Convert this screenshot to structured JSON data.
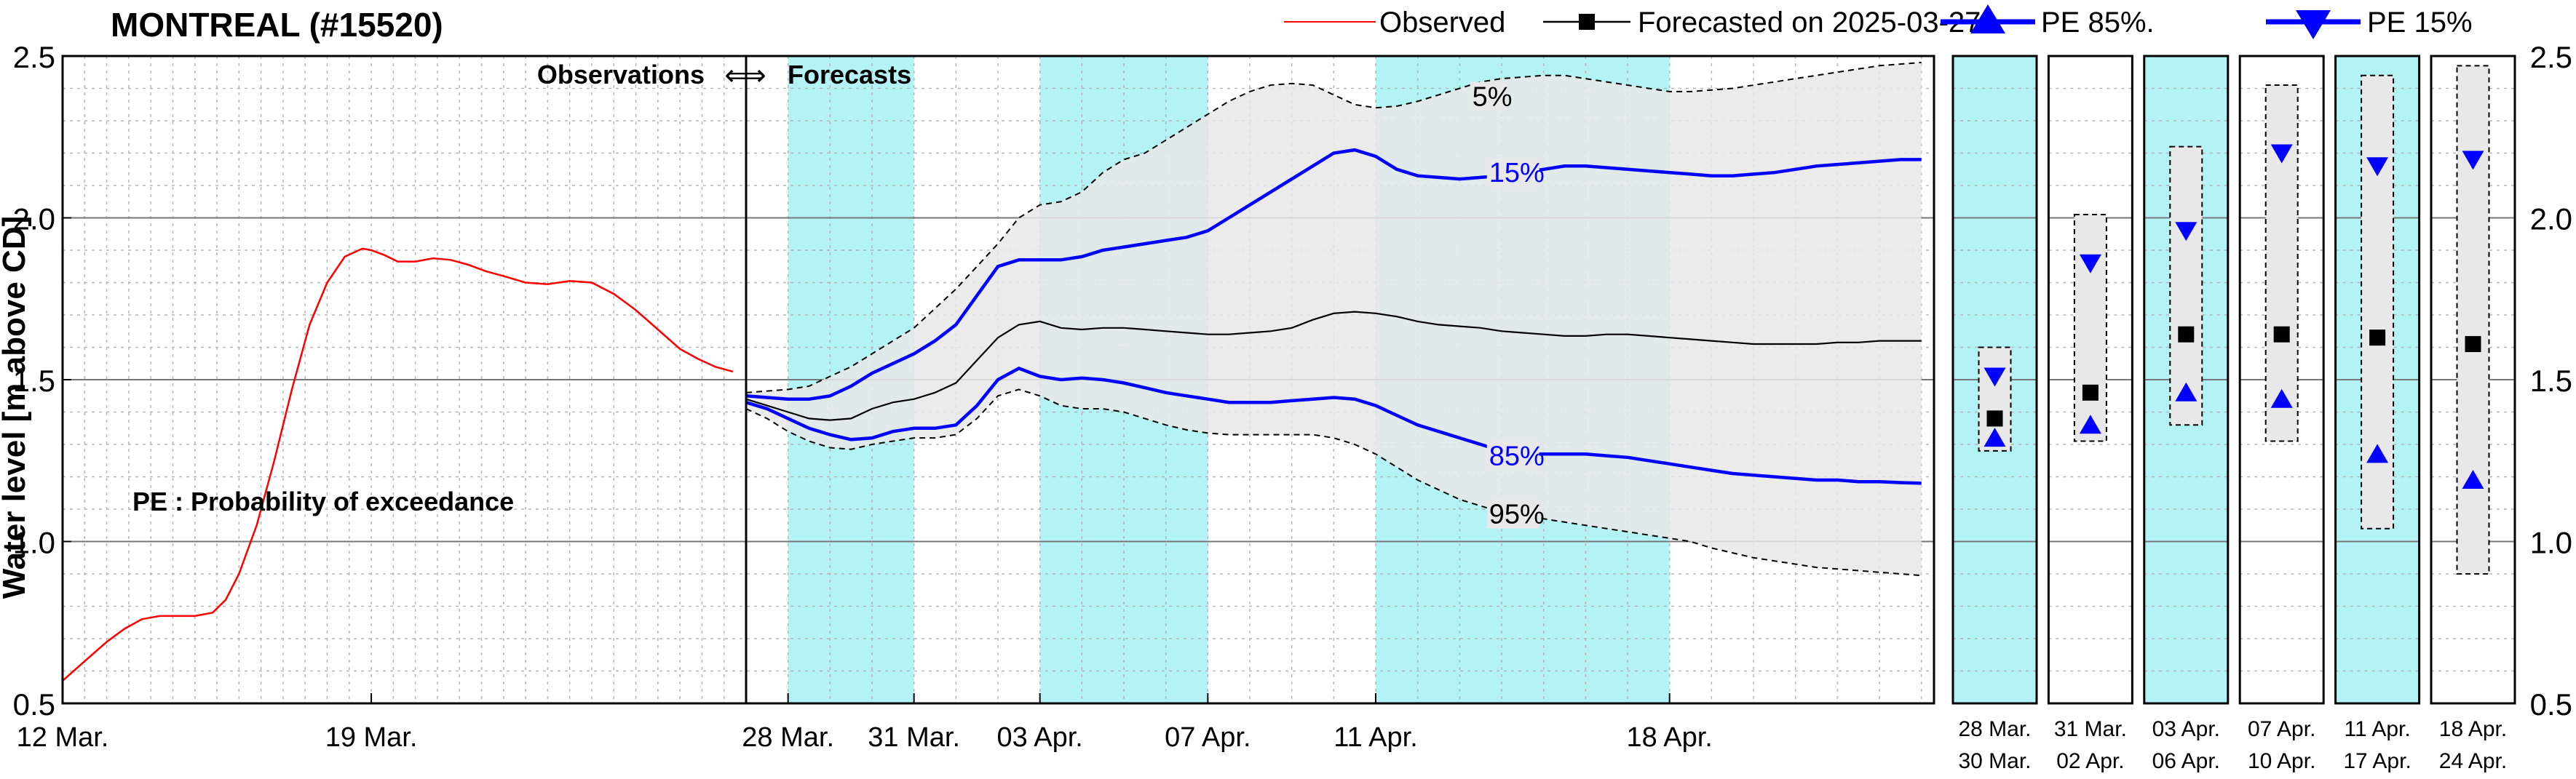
{
  "chart_data": {
    "type": "line",
    "title": "MONTREAL (#15520)",
    "ylabel": "Water level [m above CD]",
    "ylim": [
      0.5,
      2.5
    ],
    "y_ticks": [
      "0.5",
      "1.0",
      "1.5",
      "2.0",
      "2.5"
    ],
    "grid": true,
    "legend": {
      "placement": "top-right",
      "entries": [
        {
          "label": "Observed",
          "color": "#ff0000",
          "marker": "none"
        },
        {
          "label": "Forecasted on 2025-03-27",
          "color": "#000000",
          "marker": "square"
        },
        {
          "label": "PE 85%.",
          "color": "#0000ff",
          "marker": "triangle-up"
        },
        {
          "label": "PE 15%",
          "color": "#0000ff",
          "marker": "triangle-down"
        }
      ]
    },
    "annotations": {
      "obs_forecast_label": "Observations",
      "forecast_label": "Forecasts",
      "arrow": "⟺",
      "pe_note": "PE : Probability of exceedance"
    },
    "colors": {
      "observed": "#ff0000",
      "forecast": "#000000",
      "pe": "#0000ff",
      "band": "#e8e8e8",
      "shade": "#b3f3f5"
    },
    "observed_panel": {
      "x_ticks": [
        {
          "label": "12 Mar.",
          "day": 0
        },
        {
          "label": "19 Mar.",
          "day": 7
        }
      ],
      "day_range": [
        0,
        15.5
      ],
      "series": {
        "name": "Observed",
        "x": [
          0,
          0.5,
          1,
          1.4,
          1.8,
          2.2,
          2.6,
          3.0,
          3.4,
          3.7,
          4.0,
          4.4,
          4.8,
          5.2,
          5.6,
          6.0,
          6.4,
          6.8,
          7.0,
          7.3,
          7.6,
          8.0,
          8.4,
          8.8,
          9.2,
          9.6,
          10.0,
          10.5,
          11.0,
          11.5,
          12.0,
          12.5,
          13.0,
          13.5,
          14.0,
          14.4,
          14.8,
          15.2
        ],
        "y": [
          0.57,
          0.63,
          0.69,
          0.73,
          0.76,
          0.77,
          0.77,
          0.77,
          0.78,
          0.82,
          0.9,
          1.05,
          1.25,
          1.47,
          1.67,
          1.8,
          1.88,
          1.905,
          1.9,
          1.885,
          1.865,
          1.865,
          1.875,
          1.87,
          1.855,
          1.835,
          1.82,
          1.8,
          1.795,
          1.805,
          1.8,
          1.765,
          1.715,
          1.655,
          1.595,
          1.565,
          1.54,
          1.525
        ]
      }
    },
    "forecast_panel": {
      "x_ticks": [
        {
          "label": "28 Mar.",
          "day": 1
        },
        {
          "label": "31 Mar.",
          "day": 4
        },
        {
          "label": "03 Apr.",
          "day": 7
        },
        {
          "label": "07 Apr.",
          "day": 11
        },
        {
          "label": "11 Apr.",
          "day": 15
        },
        {
          "label": "18 Apr.",
          "day": 22
        }
      ],
      "day_range": [
        0,
        28.3
      ],
      "shaded_days": [
        [
          1,
          4
        ],
        [
          7,
          11
        ],
        [
          15,
          22
        ]
      ],
      "x": [
        0,
        0.5,
        1,
        1.5,
        2,
        2.5,
        3,
        3.5,
        4,
        4.5,
        5,
        5.5,
        6,
        6.5,
        7,
        7.5,
        8,
        8.5,
        9,
        9.5,
        10,
        10.5,
        11,
        11.5,
        12,
        12.5,
        13,
        13.5,
        14,
        14.5,
        15,
        15.5,
        16,
        16.5,
        17,
        17.5,
        18,
        18.5,
        19,
        19.5,
        20,
        20.5,
        21,
        21.5,
        22,
        22.5,
        23,
        23.5,
        24,
        24.5,
        25,
        25.5,
        26,
        26.5,
        27,
        27.5,
        28
      ],
      "series": [
        {
          "name": "5%",
          "role": "upper-band",
          "y": [
            1.46,
            1.465,
            1.47,
            1.48,
            1.51,
            1.54,
            1.58,
            1.62,
            1.66,
            1.72,
            1.78,
            1.85,
            1.92,
            2.0,
            2.04,
            2.05,
            2.08,
            2.14,
            2.18,
            2.2,
            2.24,
            2.28,
            2.32,
            2.36,
            2.39,
            2.41,
            2.415,
            2.41,
            2.38,
            2.35,
            2.34,
            2.345,
            2.36,
            2.38,
            2.4,
            2.42,
            2.43,
            2.435,
            2.44,
            2.44,
            2.43,
            2.42,
            2.41,
            2.4,
            2.39,
            2.39,
            2.395,
            2.4,
            2.41,
            2.42,
            2.43,
            2.44,
            2.45,
            2.46,
            2.47,
            2.475,
            2.48
          ]
        },
        {
          "name": "15%",
          "role": "pe15",
          "y": [
            1.45,
            1.445,
            1.44,
            1.44,
            1.45,
            1.48,
            1.52,
            1.55,
            1.58,
            1.62,
            1.67,
            1.76,
            1.85,
            1.87,
            1.87,
            1.87,
            1.88,
            1.9,
            1.91,
            1.92,
            1.93,
            1.94,
            1.96,
            2.0,
            2.04,
            2.08,
            2.12,
            2.16,
            2.2,
            2.21,
            2.19,
            2.15,
            2.13,
            2.125,
            2.12,
            2.125,
            2.13,
            2.14,
            2.15,
            2.16,
            2.16,
            2.155,
            2.15,
            2.145,
            2.14,
            2.135,
            2.13,
            2.13,
            2.135,
            2.14,
            2.15,
            2.16,
            2.165,
            2.17,
            2.175,
            2.18,
            2.18
          ]
        },
        {
          "name": "Forecasted on 2025-03-27",
          "role": "median",
          "y": [
            1.44,
            1.42,
            1.4,
            1.38,
            1.375,
            1.38,
            1.41,
            1.43,
            1.44,
            1.46,
            1.49,
            1.56,
            1.63,
            1.67,
            1.68,
            1.66,
            1.655,
            1.66,
            1.66,
            1.655,
            1.65,
            1.645,
            1.64,
            1.64,
            1.645,
            1.65,
            1.66,
            1.685,
            1.705,
            1.71,
            1.705,
            1.695,
            1.68,
            1.67,
            1.665,
            1.66,
            1.65,
            1.645,
            1.64,
            1.635,
            1.635,
            1.64,
            1.64,
            1.635,
            1.63,
            1.625,
            1.62,
            1.615,
            1.61,
            1.61,
            1.61,
            1.61,
            1.615,
            1.615,
            1.62,
            1.62,
            1.62
          ]
        },
        {
          "name": "85%",
          "role": "pe85",
          "y": [
            1.43,
            1.41,
            1.38,
            1.35,
            1.33,
            1.315,
            1.32,
            1.34,
            1.35,
            1.35,
            1.36,
            1.42,
            1.5,
            1.535,
            1.51,
            1.5,
            1.505,
            1.5,
            1.49,
            1.475,
            1.46,
            1.45,
            1.44,
            1.43,
            1.43,
            1.43,
            1.435,
            1.44,
            1.445,
            1.44,
            1.42,
            1.39,
            1.36,
            1.34,
            1.32,
            1.3,
            1.28,
            1.27,
            1.27,
            1.27,
            1.27,
            1.265,
            1.26,
            1.25,
            1.24,
            1.23,
            1.22,
            1.21,
            1.205,
            1.2,
            1.195,
            1.19,
            1.19,
            1.185,
            1.185,
            1.182,
            1.18
          ]
        },
        {
          "name": "95%",
          "role": "lower-band",
          "y": [
            1.41,
            1.38,
            1.34,
            1.31,
            1.29,
            1.285,
            1.3,
            1.31,
            1.32,
            1.32,
            1.33,
            1.38,
            1.45,
            1.47,
            1.45,
            1.42,
            1.41,
            1.41,
            1.4,
            1.38,
            1.36,
            1.345,
            1.335,
            1.33,
            1.33,
            1.33,
            1.33,
            1.33,
            1.32,
            1.3,
            1.27,
            1.23,
            1.19,
            1.16,
            1.13,
            1.11,
            1.09,
            1.08,
            1.07,
            1.06,
            1.05,
            1.04,
            1.03,
            1.02,
            1.01,
            1.0,
            0.98,
            0.965,
            0.95,
            0.94,
            0.93,
            0.92,
            0.915,
            0.91,
            0.905,
            0.9,
            0.895
          ]
        }
      ],
      "series_labels": [
        {
          "text": "5%",
          "day": 17.3,
          "y": 2.375,
          "color": "#000000"
        },
        {
          "text": "15%",
          "day": 17.7,
          "y": 2.14,
          "color": "#0000ff"
        },
        {
          "text": "85%",
          "day": 17.7,
          "y": 1.265,
          "color": "#0000ff"
        },
        {
          "text": "95%",
          "day": 17.7,
          "y": 1.085,
          "color": "#000000"
        }
      ]
    },
    "weekly_panels": [
      {
        "label1": "28 Mar.",
        "label2": "30 Mar.",
        "shaded": true,
        "box_top": 1.6,
        "box_bottom": 1.28,
        "median": 1.38,
        "pe85": 1.32,
        "pe15": 1.51
      },
      {
        "label1": "31 Mar.",
        "label2": "02 Apr.",
        "shaded": false,
        "box_top": 2.01,
        "box_bottom": 1.31,
        "median": 1.46,
        "pe85": 1.36,
        "pe15": 1.86
      },
      {
        "label1": "03 Apr.",
        "label2": "06 Apr.",
        "shaded": true,
        "box_top": 2.22,
        "box_bottom": 1.36,
        "median": 1.64,
        "pe85": 1.46,
        "pe15": 1.96
      },
      {
        "label1": "07 Apr.",
        "label2": "10 Apr.",
        "shaded": false,
        "box_top": 2.41,
        "box_bottom": 1.31,
        "median": 1.64,
        "pe85": 1.44,
        "pe15": 2.2
      },
      {
        "label1": "11 Apr.",
        "label2": "17 Apr.",
        "shaded": true,
        "box_top": 2.44,
        "box_bottom": 1.04,
        "median": 1.63,
        "pe85": 1.27,
        "pe15": 2.16
      },
      {
        "label1": "18 Apr.",
        "label2": "24 Apr.",
        "shaded": false,
        "box_top": 2.47,
        "box_bottom": 0.9,
        "median": 1.61,
        "pe85": 1.19,
        "pe15": 2.18
      }
    ]
  }
}
